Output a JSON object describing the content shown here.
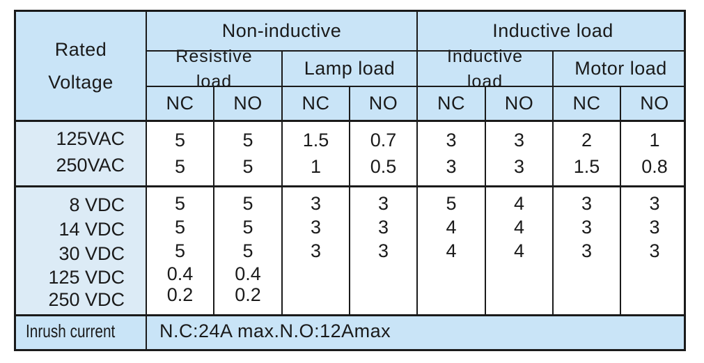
{
  "header": {
    "rated_voltage": [
      "Rated",
      "Voltage"
    ],
    "non_inductive": "Non-inductive",
    "inductive_load": "Inductive load",
    "resistive_load": [
      "Resistive",
      "load"
    ],
    "lamp_load": "Lamp load",
    "inductive_sub": [
      "Inductive",
      "load"
    ],
    "motor_load": "Motor load",
    "contacts": [
      "NC",
      "NO",
      "NC",
      "NO",
      "NC",
      "NO",
      "NC",
      "NO"
    ]
  },
  "ac": {
    "voltages": [
      "125VAC",
      "250VAC"
    ],
    "columns": [
      [
        "5",
        "5"
      ],
      [
        "5",
        "5"
      ],
      [
        "1.5",
        "1"
      ],
      [
        "0.7",
        "0.5"
      ],
      [
        "3",
        "3"
      ],
      [
        "3",
        "3"
      ],
      [
        "2",
        "1.5"
      ],
      [
        "1",
        "0.8"
      ]
    ]
  },
  "dc": {
    "voltages": [
      "8 VDC",
      "14 VDC",
      "30 VDC",
      "125 VDC",
      "250 VDC"
    ],
    "columns": [
      [
        "5",
        "5",
        "5",
        "0.4",
        "0.2"
      ],
      [
        "5",
        "5",
        "5",
        "0.4",
        "0.2"
      ],
      [
        "3",
        "3",
        "3",
        "",
        ""
      ],
      [
        "3",
        "3",
        "3",
        "",
        ""
      ],
      [
        "5",
        "4",
        "4",
        "",
        ""
      ],
      [
        "4",
        "4",
        "4",
        "",
        ""
      ],
      [
        "3",
        "3",
        "3",
        "",
        ""
      ],
      [
        "3",
        "3",
        "3",
        "",
        ""
      ]
    ]
  },
  "inrush": {
    "label": "Inrush current",
    "value": "N.C:24A max.N.O:12Amax"
  }
}
